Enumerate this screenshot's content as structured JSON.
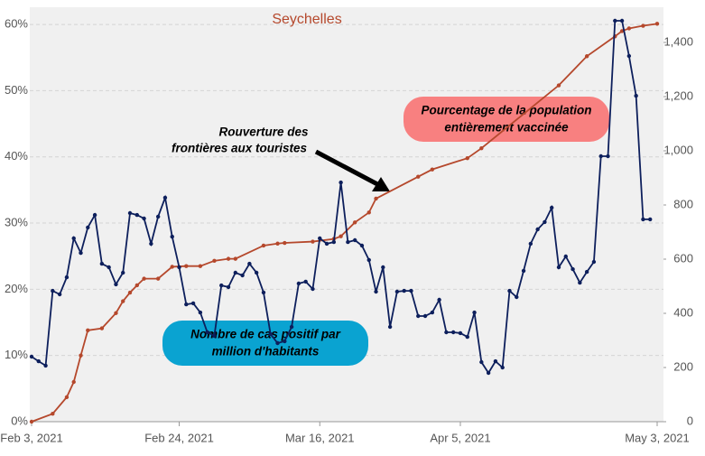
{
  "chart_data": {
    "type": "line",
    "title": "Seychelles",
    "title_color": "#b5482c",
    "xlim": [
      "2021-02-03",
      "2021-05-03"
    ],
    "xticks": [
      {
        "value": "2021-02-03",
        "label": "Feb 3, 2021"
      },
      {
        "value": "2021-02-24",
        "label": "Feb 24, 2021"
      },
      {
        "value": "2021-03-16",
        "label": "Mar 16, 2021"
      },
      {
        "value": "2021-04-05",
        "label": "Apr 5, 2021"
      },
      {
        "value": "2021-05-03",
        "label": "May 3, 2021"
      }
    ],
    "ylim": [
      0,
      62.6
    ],
    "yticks": [
      {
        "value": 0,
        "label": "0%"
      },
      {
        "value": 10,
        "label": "10%"
      },
      {
        "value": 20,
        "label": "20%"
      },
      {
        "value": 30,
        "label": "30%"
      },
      {
        "value": 40,
        "label": "40%"
      },
      {
        "value": 50,
        "label": "50%"
      },
      {
        "value": 60,
        "label": "60%"
      }
    ],
    "y2lim": [
      0,
      1530
    ],
    "y2ticks": [
      0,
      200,
      400,
      600,
      800,
      {
        "value": 1000,
        "label": "1,000"
      },
      {
        "value": 1200,
        "label": "1,200"
      },
      {
        "value": 1400,
        "label": "1,400"
      }
    ],
    "grid": true,
    "series": [
      {
        "color": "#b5482c",
        "axis": "y",
        "x": [
          "2021-02-03",
          "2021-02-06",
          "2021-02-08",
          "2021-02-09",
          "2021-02-10",
          "2021-02-11",
          "2021-02-13",
          "2021-02-15",
          "2021-02-16",
          "2021-02-17",
          "2021-02-18",
          "2021-02-19",
          "2021-02-21",
          "2021-02-23",
          "2021-02-25",
          "2021-02-27",
          "2021-03-01",
          "2021-03-03",
          "2021-03-04",
          "2021-03-08",
          "2021-03-10",
          "2021-03-11",
          "2021-03-15",
          "2021-03-18",
          "2021-03-19",
          "2021-03-21",
          "2021-03-23",
          "2021-03-24",
          "2021-03-30",
          "2021-04-01",
          "2021-04-06",
          "2021-04-08",
          "2021-04-19",
          "2021-04-23",
          "2021-04-27",
          "2021-04-28",
          "2021-04-29",
          "2021-05-01",
          "2021-05-03"
        ],
        "values": [
          0,
          1.2,
          3.7,
          6.0,
          10,
          13.8,
          14.1,
          16.4,
          18.2,
          19.5,
          20.6,
          21.6,
          21.6,
          23.4,
          23.5,
          23.5,
          24.3,
          24.6,
          24.6,
          26.6,
          26.9,
          27.0,
          27.2,
          27.6,
          28.0,
          30.1,
          31.6,
          33.7,
          37.0,
          38.1,
          39.8,
          41.3,
          50.8,
          55.2,
          58.2,
          59.0,
          59.4,
          59.8,
          60.1
        ]
      },
      {
        "color": "#0d1f5c",
        "axis": "y2",
        "x": [
          "2021-02-03",
          "2021-02-04",
          "2021-02-05",
          "2021-02-06",
          "2021-02-07",
          "2021-02-08",
          "2021-02-09",
          "2021-02-10",
          "2021-02-11",
          "2021-02-12",
          "2021-02-13",
          "2021-02-14",
          "2021-02-15",
          "2021-02-16",
          "2021-02-17",
          "2021-02-18",
          "2021-02-19",
          "2021-02-20",
          "2021-02-21",
          "2021-02-22",
          "2021-02-23",
          "2021-02-24",
          "2021-02-25",
          "2021-02-26",
          "2021-02-27",
          "2021-02-28",
          "2021-03-01",
          "2021-03-02",
          "2021-03-03",
          "2021-03-04",
          "2021-03-05",
          "2021-03-06",
          "2021-03-07",
          "2021-03-08",
          "2021-03-09",
          "2021-03-10",
          "2021-03-11",
          "2021-03-12",
          "2021-03-13",
          "2021-03-14",
          "2021-03-15",
          "2021-03-16",
          "2021-03-17",
          "2021-03-18",
          "2021-03-19",
          "2021-03-20",
          "2021-03-21",
          "2021-03-22",
          "2021-03-23",
          "2021-03-24",
          "2021-03-25",
          "2021-03-26",
          "2021-03-27",
          "2021-03-28",
          "2021-03-29",
          "2021-03-30",
          "2021-03-31",
          "2021-04-01",
          "2021-04-02",
          "2021-04-03",
          "2021-04-04",
          "2021-04-05",
          "2021-04-06",
          "2021-04-07",
          "2021-04-08",
          "2021-04-09",
          "2021-04-10",
          "2021-04-11",
          "2021-04-12",
          "2021-04-13",
          "2021-04-14",
          "2021-04-15",
          "2021-04-16",
          "2021-04-17",
          "2021-04-18",
          "2021-04-19",
          "2021-04-20",
          "2021-04-21",
          "2021-04-22",
          "2021-04-23",
          "2021-04-24",
          "2021-04-25",
          "2021-04-26",
          "2021-04-27",
          "2021-04-28",
          "2021-04-29",
          "2021-04-30",
          "2021-05-01",
          "2021-05-02"
        ],
        "values": [
          240,
          223,
          207,
          483,
          470,
          533,
          677,
          623,
          717,
          763,
          583,
          570,
          507,
          550,
          770,
          763,
          750,
          657,
          757,
          827,
          683,
          570,
          433,
          437,
          403,
          330,
          317,
          503,
          497,
          550,
          540,
          583,
          550,
          477,
          323,
          290,
          297,
          350,
          510,
          517,
          490,
          677,
          657,
          663,
          883,
          663,
          670,
          650,
          597,
          480,
          570,
          350,
          480,
          483,
          483,
          390,
          390,
          403,
          450,
          330,
          330,
          327,
          313,
          403,
          220,
          180,
          223,
          200,
          483,
          460,
          557,
          657,
          710,
          737,
          790,
          570,
          610,
          563,
          513,
          553,
          590,
          980,
          980,
          1480,
          1480,
          1350,
          1203,
          747,
          747
        ]
      }
    ],
    "annotations": [
      {
        "lines": [
          "Rouverture des",
          "frontières aux touristes"
        ]
      },
      {
        "lines": [
          "Pourcentage de la population",
          "entièrement vaccinée"
        ],
        "box_color": "#f88080"
      },
      {
        "lines": [
          "Nombre de cas positif par",
          "million d'habitants"
        ],
        "box_color": "#0aa3d1"
      }
    ]
  }
}
